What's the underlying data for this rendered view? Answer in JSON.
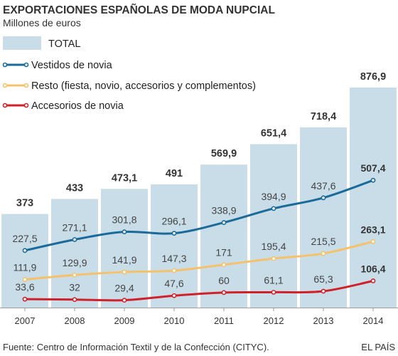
{
  "title": "EXPORTACIONES ESPAÑOLAS DE MODA NUPCIAL",
  "subtitle": "Millones de euros",
  "source": "Fuente: Centro de Información Textil y de la Confección (CITYC).",
  "brand": "EL PAÍS",
  "colors": {
    "total": "#c8dde8",
    "vestidos": "#1a6a9a",
    "resto": "#f5c26b",
    "accesorios": "#d0202a",
    "marker_fill": "#ffffff"
  },
  "chart_data": {
    "type": "bar",
    "categories": [
      "2007",
      "2008",
      "2009",
      "2010",
      "2011",
      "2012",
      "2013",
      "2014"
    ],
    "ylim": [
      0,
      900
    ],
    "grid": false,
    "legend_position": "top-left",
    "bars": {
      "name": "TOTAL",
      "values": [
        373,
        433,
        473.1,
        491,
        569.9,
        651.4,
        718.4,
        876.9
      ],
      "labels": [
        "373",
        "433",
        "473,1",
        "491",
        "569,9",
        "651,4",
        "718,4",
        "876,9"
      ]
    },
    "series": [
      {
        "key": "vestidos",
        "name": "Vestidos de novia",
        "type": "line",
        "values": [
          227.5,
          271.1,
          301.8,
          296.1,
          338.9,
          394.9,
          437.6,
          507.4
        ],
        "labels": [
          "227,5",
          "271,1",
          "301,8",
          "296,1",
          "338,9",
          "394,9",
          "437,6",
          "507,4"
        ]
      },
      {
        "key": "resto",
        "name": "Resto (fiesta, novio, accesorios y complementos)",
        "type": "line",
        "values": [
          111.9,
          129.9,
          141.9,
          147.3,
          171,
          195.4,
          215.5,
          263.1
        ],
        "labels": [
          "111,9",
          "129,9",
          "141,9",
          "147,3",
          "171",
          "195,4",
          "215,5",
          "263,1"
        ]
      },
      {
        "key": "accesorios",
        "name": "Accesorios de novia",
        "type": "line",
        "values": [
          33.6,
          32,
          29.4,
          47.6,
          60,
          61.1,
          65.3,
          106.4
        ],
        "labels": [
          "33,6",
          "32",
          "29,4",
          "47,6",
          "60",
          "61,1",
          "65,3",
          "106,4"
        ]
      }
    ]
  }
}
